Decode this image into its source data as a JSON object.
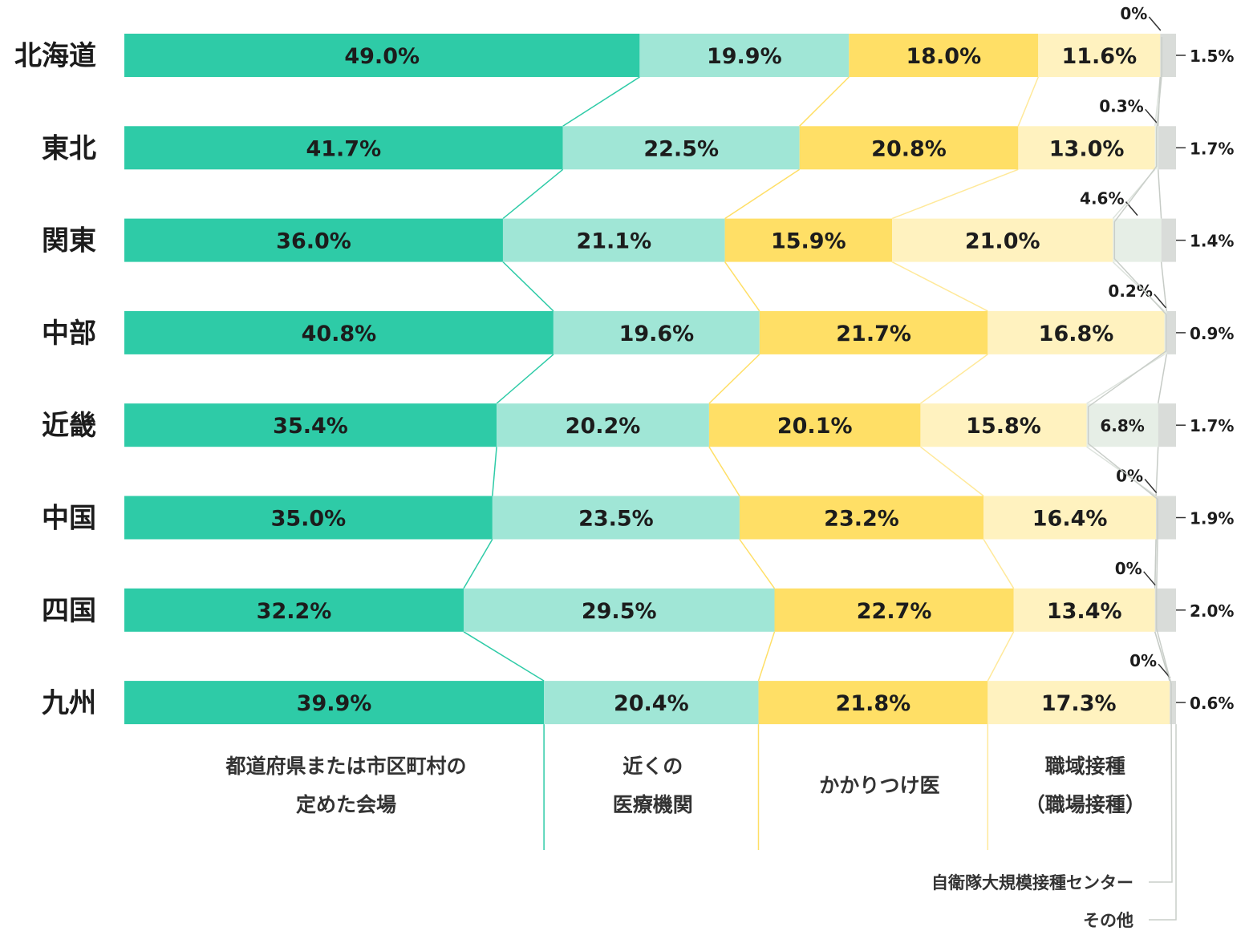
{
  "chart_data": {
    "type": "bar",
    "orientation": "horizontal",
    "stacked": true,
    "normalized": true,
    "categories": [
      "北海道",
      "東北",
      "関東",
      "中部",
      "近畿",
      "中国",
      "四国",
      "九州"
    ],
    "series": [
      {
        "name": "都道府県または市区町村の定めた会場",
        "legend_lines": [
          "都道府県または市区町村の",
          "定めた会場"
        ],
        "color": "#2ecba7",
        "values": [
          49.0,
          41.7,
          36.0,
          40.8,
          35.4,
          35.0,
          32.2,
          39.9
        ],
        "labels": [
          "49.0%",
          "41.7%",
          "36.0%",
          "40.8%",
          "35.4%",
          "35.0%",
          "32.2%",
          "39.9%"
        ]
      },
      {
        "name": "近くの医療機関",
        "legend_lines": [
          "近くの",
          "医療機関"
        ],
        "color": "#a0e6d6",
        "values": [
          19.9,
          22.5,
          21.1,
          19.6,
          20.2,
          23.5,
          29.5,
          20.4
        ],
        "labels": [
          "19.9%",
          "22.5%",
          "21.1%",
          "19.6%",
          "20.2%",
          "23.5%",
          "29.5%",
          "20.4%"
        ]
      },
      {
        "name": "かかりつけ医",
        "legend_lines": [
          "かかりつけ医"
        ],
        "color": "#ffdf66",
        "values": [
          18.0,
          20.8,
          15.9,
          21.7,
          20.1,
          23.2,
          22.7,
          21.8
        ],
        "labels": [
          "18.0%",
          "20.8%",
          "15.9%",
          "21.7%",
          "20.1%",
          "23.2%",
          "22.7%",
          "21.8%"
        ]
      },
      {
        "name": "職域接種（職場接種）",
        "legend_lines": [
          "職域接種",
          "（職場接種）"
        ],
        "color": "#fff2bf",
        "values": [
          11.6,
          13.0,
          21.0,
          16.8,
          15.8,
          16.4,
          13.4,
          17.3
        ],
        "labels": [
          "11.6%",
          "13.0%",
          "21.0%",
          "16.8%",
          "15.8%",
          "16.4%",
          "13.4%",
          "17.3%"
        ]
      },
      {
        "name": "自衛隊大規模接種センター",
        "legend_lines": [
          "自衛隊大規模接種センター"
        ],
        "color": "#e6eee6",
        "values": [
          0,
          0.3,
          4.6,
          0.2,
          6.8,
          0,
          0,
          0
        ],
        "labels": [
          "0%",
          "0.3%",
          "4.6%",
          "0.2%",
          "6.8%",
          "0%",
          "0%",
          "0%"
        ]
      },
      {
        "name": "その他",
        "legend_lines": [
          "その他"
        ],
        "color": "#d9dcd9",
        "values": [
          1.5,
          1.7,
          1.4,
          0.9,
          1.7,
          1.9,
          2.0,
          0.6
        ],
        "labels": [
          "1.5%",
          "1.7%",
          "1.4%",
          "0.9%",
          "1.7%",
          "1.9%",
          "2.0%",
          "0.6%"
        ]
      }
    ],
    "connector_colors": [
      "#2ecba7",
      "#ffdf66",
      "#ffe99a",
      "#dde3dd",
      "#c6cbc6"
    ],
    "grid": false,
    "legend": "bottom"
  }
}
